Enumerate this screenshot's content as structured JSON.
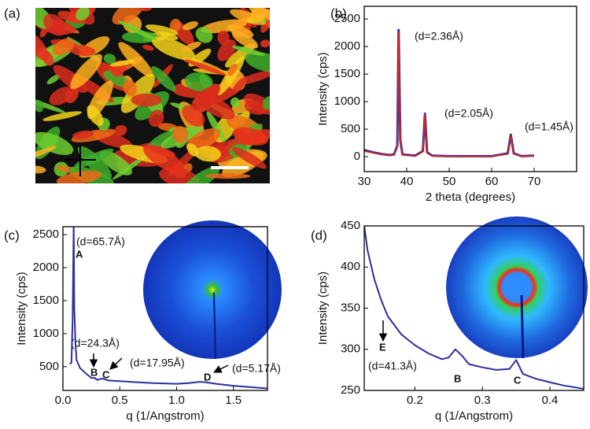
{
  "image_panel": {
    "panel_label": "(a)"
  },
  "chart_data": [
    {
      "type": "line",
      "panel_label": "(b)",
      "xlabel": "2 theta (degrees)",
      "ylabel": "Intensity (cps)",
      "x": [
        30,
        32,
        34,
        36,
        37,
        37.8,
        38.1,
        38.5,
        39,
        42,
        43.8,
        44.3,
        44.8,
        46,
        50,
        55,
        60,
        63.8,
        64.5,
        65.2,
        67,
        70
      ],
      "series": [
        {
          "name": "data",
          "color": "#2b2f9c",
          "values": [
            120,
            80,
            50,
            30,
            40,
            200,
            2300,
            300,
            40,
            20,
            100,
            780,
            80,
            20,
            10,
            10,
            10,
            60,
            400,
            60,
            10,
            20
          ]
        },
        {
          "name": "fit",
          "color": "#e2231a",
          "values": [
            100,
            70,
            45,
            28,
            35,
            180,
            2250,
            280,
            35,
            15,
            90,
            760,
            70,
            15,
            8,
            8,
            8,
            50,
            380,
            50,
            8,
            15
          ]
        }
      ],
      "xlim": [
        30,
        80
      ],
      "ylim": [
        -270,
        2730
      ],
      "xticks": [
        30,
        40,
        50,
        60,
        70
      ],
      "yticks": [
        0,
        500,
        1000,
        1500,
        2000,
        2500
      ],
      "annotations": [
        "(d=2.36Å)",
        "(d=2.05Å)",
        "(d=1.45Å)"
      ]
    },
    {
      "type": "line",
      "panel_label": "(c)",
      "xlabel": "q (1/Angstrom)",
      "ylabel": "Intensity (cps)",
      "x": [
        0.06,
        0.075,
        0.085,
        0.095,
        0.1,
        0.11,
        0.12,
        0.15,
        0.2,
        0.25,
        0.28,
        0.3,
        0.35,
        0.4,
        0.5,
        0.6,
        0.8,
        1.0,
        1.1,
        1.2,
        1.25,
        1.35,
        1.5,
        1.65,
        1.8
      ],
      "series": [
        {
          "name": "c",
          "color": "#2b2f9c",
          "values": [
            540,
            560,
            1200,
            2700,
            1400,
            870,
            600,
            480,
            400,
            330,
            330,
            300,
            320,
            290,
            280,
            270,
            250,
            240,
            250,
            270,
            265,
            240,
            210,
            190,
            170
          ]
        }
      ],
      "xlim": [
        0,
        1.8
      ],
      "ylim": [
        140,
        2620
      ],
      "xticks": [
        {
          "value": 0,
          "label": "0.0"
        },
        0.5,
        {
          "value": 1,
          "label": "1.0"
        },
        1.5
      ],
      "yticks": [
        500,
        1000,
        1500,
        2000,
        2500
      ],
      "annotations": [
        "(d=65.7Å)",
        "A",
        "(d=24.3Å)",
        "B",
        "C",
        "(d=17.95Å)",
        "D",
        "(d=5.17Å)"
      ]
    },
    {
      "type": "line",
      "panel_label": "(d)",
      "xlabel": "q (1/Angstrom)",
      "ylabel": "Intensity (cps)",
      "x": [
        0.125,
        0.13,
        0.14,
        0.15,
        0.16,
        0.18,
        0.2,
        0.22,
        0.24,
        0.25,
        0.26,
        0.27,
        0.28,
        0.3,
        0.32,
        0.34,
        0.35,
        0.36,
        0.38,
        0.4,
        0.42,
        0.45
      ],
      "series": [
        {
          "name": "d",
          "color": "#2b2f9c",
          "values": [
            450,
            420,
            385,
            360,
            340,
            318,
            305,
            295,
            288,
            290,
            300,
            292,
            282,
            278,
            275,
            276,
            287,
            270,
            264,
            260,
            256,
            252
          ]
        }
      ],
      "xlim": [
        0.125,
        0.45
      ],
      "ylim": [
        250,
        450
      ],
      "xticks": [
        0.2,
        0.3,
        0.4
      ],
      "yticks": [
        250,
        300,
        350,
        400,
        450
      ],
      "annotations": [
        "E",
        "(d=41.3Å)",
        "B",
        "C"
      ]
    }
  ]
}
